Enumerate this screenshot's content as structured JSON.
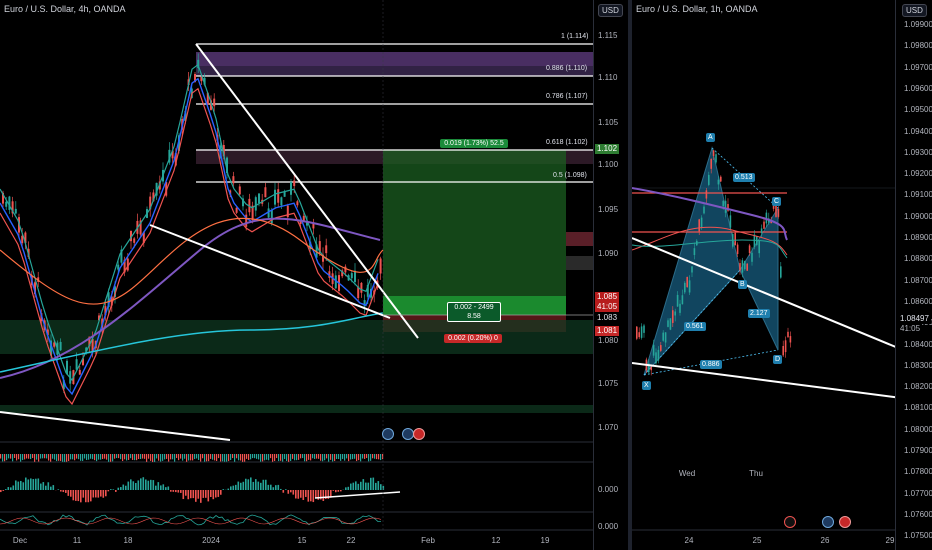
{
  "left_chart": {
    "title": "Euro / U.S. Dollar, 4h, OANDA",
    "currency": "USD",
    "price_ticks": [
      "1.115",
      "1.110",
      "1.105",
      "1.100",
      "1.095",
      "1.090",
      "1.085",
      "1.080",
      "1.075",
      "1.070"
    ],
    "date_ticks": [
      "Dec",
      "11",
      "18",
      "2024",
      "15",
      "22",
      "Feb",
      "12",
      "19"
    ],
    "fib_levels": [
      "1 (1.114)",
      "0.886 (1.110)",
      "0.786 (1.107)",
      "0.618 (1.102)",
      "0.5 (1.098)"
    ],
    "position_target_label": "0.019 (1.73%) 52.5",
    "position_entry_label_line1": "0.002 - 2499",
    "position_entry_label_line2": "8.58",
    "position_stop_label": "0.002 (0.20%) 0",
    "price_tag_current": "1.102",
    "price_tag_1": "1.085",
    "price_tag_1_timer": "41:05",
    "price_tag_2": "1.083",
    "price_tag_3": "1.081",
    "oscillator_tick_1": "0.000",
    "oscillator_tick_2": "0.000",
    "colors": {
      "bull": "#26a69a",
      "bear": "#ef5350",
      "target": "#1b5e20",
      "stop": "#5d1a1a"
    }
  },
  "right_chart": {
    "title": "Euro / U.S. Dollar, 1h, OANDA",
    "currency": "USD",
    "price_ticks": [
      "1.09900",
      "1.09800",
      "1.09700",
      "1.09600",
      "1.09500",
      "1.09400",
      "1.09300",
      "1.09200",
      "1.09100",
      "1.09000",
      "1.08900",
      "1.08800",
      "1.08700",
      "1.08600",
      "1.08500",
      "1.08400",
      "1.08300",
      "1.08200",
      "1.08100",
      "1.08000",
      "1.07900",
      "1.07800",
      "1.07700",
      "1.07600",
      "1.07500"
    ],
    "date_ticks": [
      "24",
      "25",
      "26",
      "29"
    ],
    "day_labels": [
      "Wed",
      "Thu"
    ],
    "price_tag": "1.08497",
    "price_tag_timer": "41:05",
    "pattern_points": {
      "x": "X",
      "a": "A",
      "b": "B",
      "c": "C",
      "d": "D"
    },
    "pattern_ratios": {
      "xab": "0.561",
      "abc": "0.513",
      "bcd": "2.127",
      "xad": "0.886"
    }
  }
}
